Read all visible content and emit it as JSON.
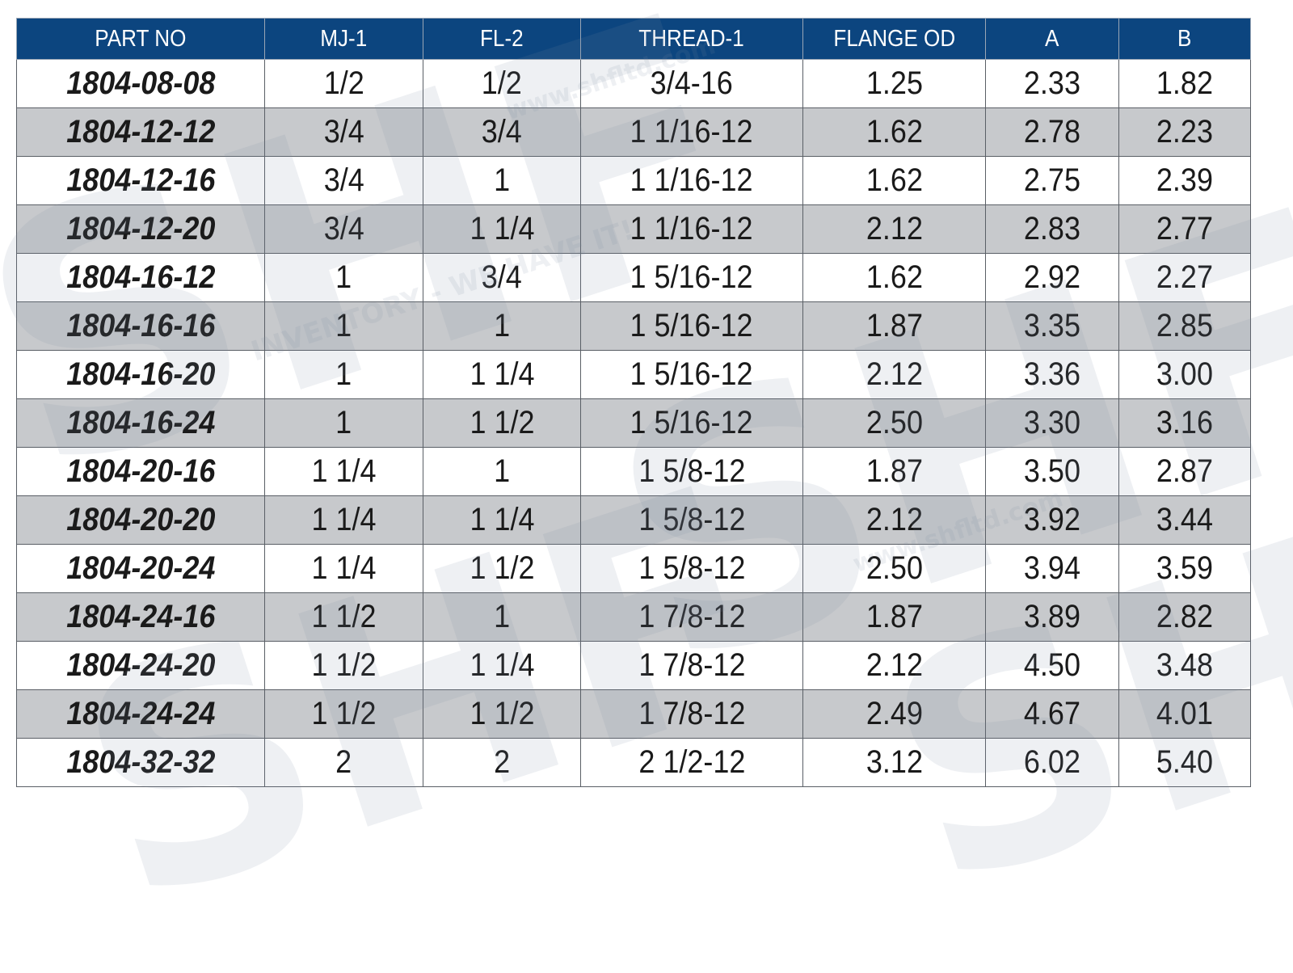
{
  "table": {
    "columns": [
      "PART NO",
      "MJ-1",
      "FL-2",
      "THREAD-1",
      "FLANGE OD",
      "A",
      "B"
    ],
    "rows": [
      [
        "1804-08-08",
        "1/2",
        "1/2",
        "3/4-16",
        "1.25",
        "2.33",
        "1.82"
      ],
      [
        "1804-12-12",
        "3/4",
        "3/4",
        "1 1/16-12",
        "1.62",
        "2.78",
        "2.23"
      ],
      [
        "1804-12-16",
        "3/4",
        "1",
        "1 1/16-12",
        "1.62",
        "2.75",
        "2.39"
      ],
      [
        "1804-12-20",
        "3/4",
        "1 1/4",
        "1 1/16-12",
        "2.12",
        "2.83",
        "2.77"
      ],
      [
        "1804-16-12",
        "1",
        "3/4",
        "1 5/16-12",
        "1.62",
        "2.92",
        "2.27"
      ],
      [
        "1804-16-16",
        "1",
        "1",
        "1 5/16-12",
        "1.87",
        "3.35",
        "2.85"
      ],
      [
        "1804-16-20",
        "1",
        "1 1/4",
        "1 5/16-12",
        "2.12",
        "3.36",
        "3.00"
      ],
      [
        "1804-16-24",
        "1",
        "1 1/2",
        "1 5/16-12",
        "2.50",
        "3.30",
        "3.16"
      ],
      [
        "1804-20-16",
        "1 1/4",
        "1",
        "1 5/8-12",
        "1.87",
        "3.50",
        "2.87"
      ],
      [
        "1804-20-20",
        "1 1/4",
        "1 1/4",
        "1 5/8-12",
        "2.12",
        "3.92",
        "3.44"
      ],
      [
        "1804-20-24",
        "1 1/4",
        "1 1/2",
        "1 5/8-12",
        "2.50",
        "3.94",
        "3.59"
      ],
      [
        "1804-24-16",
        "1 1/2",
        "1",
        "1 7/8-12",
        "1.87",
        "3.89",
        "2.82"
      ],
      [
        "1804-24-20",
        "1 1/2",
        "1 1/4",
        "1 7/8-12",
        "2.12",
        "4.50",
        "3.48"
      ],
      [
        "1804-24-24",
        "1 1/2",
        "1 1/2",
        "1 7/8-12",
        "2.49",
        "4.67",
        "4.01"
      ],
      [
        "1804-32-32",
        "2",
        "2",
        "2 1/2-12",
        "3.12",
        "6.02",
        "5.40"
      ]
    ]
  },
  "watermark": {
    "logo": "SHF",
    "tagline": "INVENTORY - WE HAVE IT!",
    "url": "www.shfltd.com"
  },
  "colors": {
    "header_bg": "#0c457f",
    "header_text": "#ffffff",
    "alt_row": "#c7c9cc",
    "border": "#5a5f66"
  }
}
